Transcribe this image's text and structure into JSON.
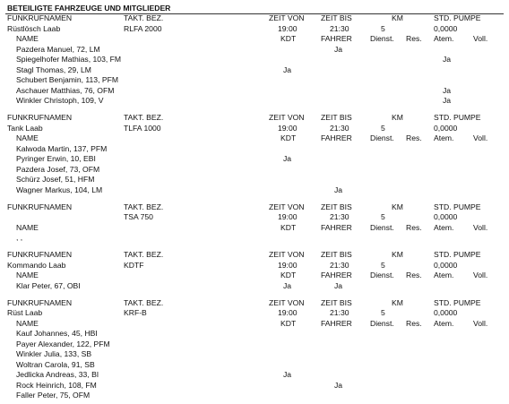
{
  "title": "BETEILIGTE FAHRZEUGE UND MITGLIEDER",
  "column_headers": {
    "funkrufname": "FUNKRUFNAMEN",
    "takt": "TAKT. BEZ.",
    "zeit_von": "ZEIT VON",
    "zeit_bis": "ZEIT BIS",
    "km": "KM",
    "std_pumpe": "STD. PUMPE"
  },
  "member_headers": {
    "name": "NAME",
    "kdt": "KDT",
    "fahrer": "FAHRER",
    "dienst": "Dienst.",
    "res": "Res.",
    "atem": "Atem.",
    "voll": "Voll."
  },
  "vehicles": [
    {
      "funkrufname": "Rüstlösch Laab",
      "takt": "RLFA 2000",
      "zeit_von": "19:00",
      "zeit_bis": "21:30",
      "km": 5,
      "std_pumpe": "0,0000",
      "members": [
        {
          "name": "Pazdera Manuel, 72, LM",
          "fahrer": "Ja"
        },
        {
          "name": "Spiegelhofer Mathias, 103, FM",
          "atem": "Ja"
        },
        {
          "name": "Stagl Thomas, 29, LM",
          "kdt": "Ja"
        },
        {
          "name": "Schubert Benjamin, 113, PFM"
        },
        {
          "name": "Aschauer Matthias, 76, OFM",
          "atem": "Ja"
        },
        {
          "name": "Winkler Christoph, 109, V",
          "atem": "Ja"
        }
      ]
    },
    {
      "funkrufname": "Tank Laab",
      "takt": "TLFA 1000",
      "zeit_von": "19:00",
      "zeit_bis": "21:30",
      "km": 5,
      "std_pumpe": "0,0000",
      "members": [
        {
          "name": "Kalwoda Martin, 137, PFM"
        },
        {
          "name": "Pyringer Erwin, 10, EBI",
          "kdt": "Ja"
        },
        {
          "name": "Pazdera Josef, 73, OFM"
        },
        {
          "name": "Schürz Josef, 51, HFM"
        },
        {
          "name": "Wagner Markus, 104, LM",
          "fahrer": "Ja"
        }
      ]
    },
    {
      "takt": "TSA 750",
      "zeit_von": "19:00",
      "zeit_bis": "21:30",
      "km": 5,
      "std_pumpe": "0,0000",
      "members": [
        {
          "name": ", ,"
        }
      ]
    },
    {
      "funkrufname": "Kommando Laab",
      "takt": "KDTF",
      "zeit_von": "19:00",
      "zeit_bis": "21:30",
      "km": 5,
      "std_pumpe": "0,0000",
      "members": [
        {
          "name": "Klar Peter, 67, OBI",
          "kdt": "Ja",
          "fahrer": "Ja"
        }
      ]
    },
    {
      "funkrufname": "Rüst Laab",
      "takt": "KRF-B",
      "zeit_von": "19:00",
      "zeit_bis": "21:30",
      "km": 5,
      "std_pumpe": "0,0000",
      "members": [
        {
          "name": "Kauf Johannes, 45, HBI"
        },
        {
          "name": "Payer Alexander, 122, PFM"
        },
        {
          "name": "Winkler Julia, 133, SB"
        },
        {
          "name": "Woltran Carola, 91, SB"
        },
        {
          "name": "Jedlicka Andreas, 33, BI",
          "kdt": "Ja"
        },
        {
          "name": "Rock Heinrich, 108, FM",
          "fahrer": "Ja"
        },
        {
          "name": "Faller Peter, 75, OFM"
        }
      ]
    }
  ]
}
